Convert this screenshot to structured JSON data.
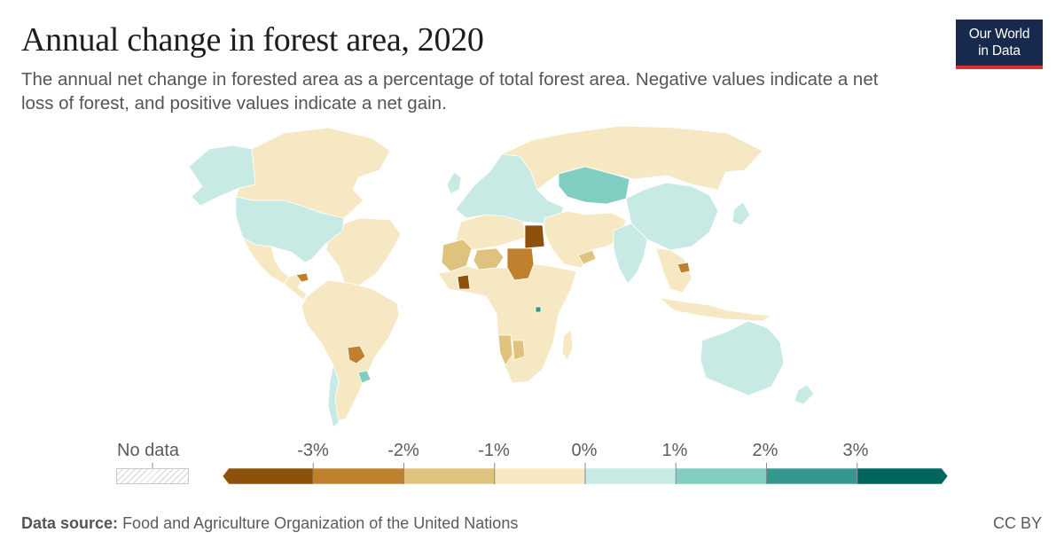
{
  "header": {
    "title": "Annual change in forest area, 2020",
    "subtitle": "The annual net change in forested area as a percentage of total forest area. Negative values indicate a net loss of forest, and positive values indicate a net gain."
  },
  "logo": {
    "line1": "Our World",
    "line2": "in Data",
    "bg_color": "#18294e",
    "accent_color": "#d9322b"
  },
  "legend": {
    "no_data_label": "No data",
    "ticks": [
      "-3%",
      "-2%",
      "-1%",
      "0%",
      "1%",
      "2%",
      "3%"
    ],
    "bins": [
      {
        "range": "< -3%",
        "color": "#8c510a"
      },
      {
        "range": "-3% to -2%",
        "color": "#bf812d"
      },
      {
        "range": "-2% to -1%",
        "color": "#dfc27d"
      },
      {
        "range": "-1% to 0%",
        "color": "#f6e8c3"
      },
      {
        "range": "0% to 1%",
        "color": "#c7eae5"
      },
      {
        "range": "1% to 2%",
        "color": "#80cdc1"
      },
      {
        "range": "2% to 3%",
        "color": "#35978f"
      },
      {
        "range": "> 3%",
        "color": "#01665e"
      }
    ]
  },
  "map": {
    "region_values": [
      {
        "region": "Canada",
        "bin": 3
      },
      {
        "region": "Alaska",
        "bin": 4
      },
      {
        "region": "Greenland",
        "bin": 3
      },
      {
        "region": "United States",
        "bin": 4
      },
      {
        "region": "Mexico",
        "bin": 3
      },
      {
        "region": "Central America",
        "bin": 3
      },
      {
        "region": "Honduras",
        "bin": 1
      },
      {
        "region": "South America",
        "bin": 3
      },
      {
        "region": "Chile",
        "bin": 4
      },
      {
        "region": "Paraguay",
        "bin": 1
      },
      {
        "region": "Uruguay",
        "bin": 5
      },
      {
        "region": "Europe",
        "bin": 4
      },
      {
        "region": "Russia",
        "bin": 3
      },
      {
        "region": "Kazakhstan",
        "bin": 5
      },
      {
        "region": "China",
        "bin": 4
      },
      {
        "region": "India",
        "bin": 4
      },
      {
        "region": "Middle East",
        "bin": 3
      },
      {
        "region": "North Africa",
        "bin": 3
      },
      {
        "region": "Egypt",
        "bin": 0
      },
      {
        "region": "Mali",
        "bin": 2
      },
      {
        "region": "Niger",
        "bin": 2
      },
      {
        "region": "Sudan",
        "bin": 1
      },
      {
        "region": "Côte d'Ivoire",
        "bin": 0
      },
      {
        "region": "Sub-Saharan Africa",
        "bin": 3
      },
      {
        "region": "Namibia",
        "bin": 2
      },
      {
        "region": "Botswana",
        "bin": 2
      },
      {
        "region": "Rwanda",
        "bin": 6
      },
      {
        "region": "Yemen",
        "bin": 2
      },
      {
        "region": "Cambodia",
        "bin": 1
      },
      {
        "region": "Southeast Asia",
        "bin": 3
      },
      {
        "region": "Indonesia",
        "bin": 3
      },
      {
        "region": "Australia",
        "bin": 4
      },
      {
        "region": "New Zealand",
        "bin": 4
      },
      {
        "region": "Japan",
        "bin": 4
      }
    ]
  },
  "footer": {
    "source_label": "Data source:",
    "source_text": "Food and Agriculture Organization of the United Nations",
    "license": "CC BY"
  }
}
